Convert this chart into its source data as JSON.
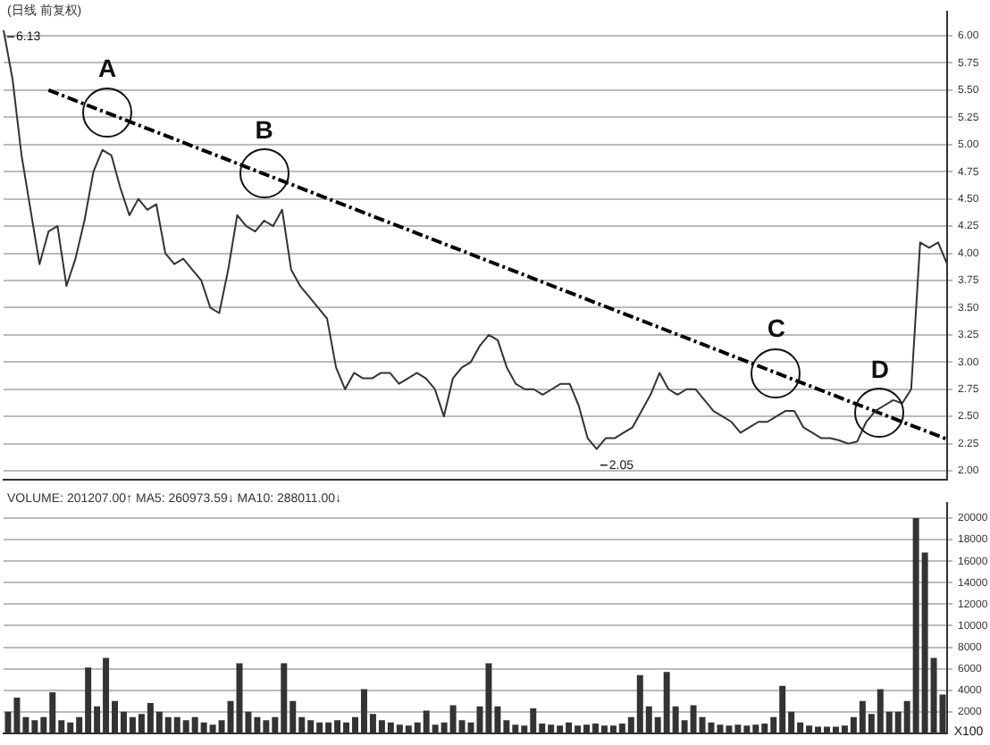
{
  "chart_data": [
    {
      "type": "line",
      "title": "(日线 前复权)",
      "categories": [
        null,
        null,
        null,
        null,
        null,
        null,
        null,
        null,
        null,
        null,
        null,
        null,
        null,
        null,
        null,
        null,
        null,
        null,
        null,
        null,
        null,
        null,
        null,
        null,
        null,
        null,
        null,
        null,
        null,
        null,
        null,
        null,
        null,
        null,
        null,
        null,
        null,
        null,
        null,
        null,
        null,
        null,
        null,
        null,
        null,
        null,
        null,
        null,
        null,
        null,
        null,
        null,
        null,
        null,
        null,
        null,
        null,
        null,
        null,
        null,
        null,
        null,
        null,
        null,
        null,
        null,
        null,
        null,
        null,
        null,
        null,
        null,
        null,
        null,
        null,
        null,
        null,
        null,
        null,
        null,
        null,
        null,
        null,
        null,
        null,
        null,
        null,
        null,
        null,
        null,
        null,
        null,
        null,
        null,
        null,
        null,
        null,
        null,
        null,
        null,
        null,
        null,
        null,
        null,
        null,
        null
      ],
      "series": [
        {
          "color": "#333333",
          "values": [
            6.05,
            5.6,
            4.9,
            4.4,
            3.9,
            4.2,
            4.25,
            3.7,
            3.95,
            4.3,
            4.75,
            4.95,
            4.9,
            4.6,
            4.35,
            4.5,
            4.4,
            4.45,
            4.0,
            3.9,
            3.95,
            3.85,
            3.75,
            3.5,
            3.45,
            3.85,
            4.35,
            4.25,
            4.2,
            4.3,
            4.25,
            4.4,
            3.85,
            3.7,
            3.6,
            3.5,
            3.4,
            2.95,
            2.75,
            2.9,
            2.85,
            2.85,
            2.9,
            2.9,
            2.8,
            2.85,
            2.9,
            2.85,
            2.75,
            2.5,
            2.85,
            2.95,
            3.0,
            3.15,
            3.25,
            3.2,
            2.95,
            2.8,
            2.75,
            2.75,
            2.7,
            2.75,
            2.8,
            2.8,
            2.6,
            2.3,
            2.2,
            2.3,
            2.3,
            2.35,
            2.4,
            2.55,
            2.7,
            2.9,
            2.75,
            2.7,
            2.75,
            2.75,
            2.65,
            2.55,
            2.5,
            2.45,
            2.35,
            2.4,
            2.45,
            2.45,
            2.5,
            2.55,
            2.55,
            2.4,
            2.35,
            2.3,
            2.3,
            2.28,
            2.25,
            2.27,
            2.45,
            2.55,
            2.6,
            2.65,
            2.62,
            2.75,
            4.1,
            4.05,
            4.1,
            3.9
          ]
        },
        {
          "type": "line",
          "color": "#000000",
          "line_style": "dashed",
          "values": [
            null,
            null,
            null,
            null,
            null,
            5.5,
            null,
            null,
            null,
            null,
            null,
            null,
            null,
            null,
            null,
            null,
            null,
            null,
            null,
            null,
            null,
            null,
            null,
            null,
            null,
            null,
            null,
            null,
            null,
            null,
            null,
            null,
            null,
            null,
            null,
            null,
            null,
            null,
            null,
            null,
            null,
            null,
            null,
            null,
            null,
            null,
            null,
            null,
            null,
            null,
            null,
            null,
            null,
            null,
            null,
            null,
            null,
            null,
            null,
            null,
            null,
            null,
            null,
            null,
            null,
            null,
            null,
            null,
            null,
            null,
            null,
            null,
            null,
            null,
            null,
            null,
            null,
            null,
            null,
            null,
            null,
            null,
            null,
            null,
            null,
            null,
            null,
            null,
            null,
            null,
            null,
            null,
            null,
            null,
            null,
            null,
            null,
            null,
            null,
            null,
            null,
            null,
            null,
            null,
            null,
            2.29
          ]
        }
      ],
      "ylim": [
        1.92,
        6.22
      ],
      "yticks": [
        {
          "value": 2,
          "label": "2.00"
        },
        {
          "value": 2.25,
          "label": "2.25"
        },
        {
          "value": 2.5,
          "label": "2.50"
        },
        {
          "value": 2.75,
          "label": "2.75"
        },
        {
          "value": 3,
          "label": "3.00"
        },
        {
          "value": 3.25,
          "label": "3.25"
        },
        {
          "value": 3.5,
          "label": "3.50"
        },
        {
          "value": 3.75,
          "label": "3.75"
        },
        {
          "value": 4,
          "label": "4.00"
        },
        {
          "value": 4.25,
          "label": "4.25"
        },
        {
          "value": 4.5,
          "label": "4.50"
        },
        {
          "value": 4.75,
          "label": "4.75"
        },
        {
          "value": 5,
          "label": "5.00"
        },
        {
          "value": 5.25,
          "label": "5.25"
        },
        {
          "value": 5.5,
          "label": "5.50"
        },
        {
          "value": 5.75,
          "label": "5.75"
        },
        {
          "value": 6,
          "label": "6.00"
        }
      ],
      "grid": "y",
      "legend": false,
      "tick_labels": "y",
      "marker": "none",
      "annotations": [
        "6.13",
        "2.05",
        {
          "text": "A",
          "y": 5.29
        },
        {
          "text": "B",
          "y": 4.73
        },
        {
          "text": "C",
          "y": 2.9
        },
        {
          "text": "D",
          "y": 2.53
        }
      ]
    },
    {
      "type": "bar",
      "title": "VOLUME: 201207.00↑  MA5: 260973.59↓  MA10: 288011.00↓",
      "categories": [
        null,
        null,
        null,
        null,
        null,
        null,
        null,
        null,
        null,
        null,
        null,
        null,
        null,
        null,
        null,
        null,
        null,
        null,
        null,
        null,
        null,
        null,
        null,
        null,
        null,
        null,
        null,
        null,
        null,
        null,
        null,
        null,
        null,
        null,
        null,
        null,
        null,
        null,
        null,
        null,
        null,
        null,
        null,
        null,
        null,
        null,
        null,
        null,
        null,
        null,
        null,
        null,
        null,
        null,
        null,
        null,
        null,
        null,
        null,
        null,
        null,
        null,
        null,
        null,
        null,
        null,
        null,
        null,
        null,
        null,
        null,
        null,
        null,
        null,
        null,
        null,
        null,
        null,
        null,
        null,
        null,
        null,
        null,
        null,
        null,
        null,
        null,
        null,
        null,
        null,
        null,
        null,
        null,
        null,
        null,
        null,
        null,
        null,
        null,
        null,
        null,
        null,
        null,
        null,
        null,
        null
      ],
      "series": [
        {
          "color": "#333333",
          "values": [
            2000,
            3300,
            1500,
            1200,
            1500,
            3800,
            1200,
            1000,
            1500,
            6100,
            2500,
            7000,
            3000,
            2000,
            1500,
            1800,
            2800,
            2000,
            1500,
            1500,
            1200,
            1500,
            1000,
            800,
            1200,
            3000,
            6500,
            2000,
            1500,
            1200,
            1500,
            6500,
            3000,
            1500,
            1200,
            1000,
            1000,
            1200,
            1000,
            1500,
            4100,
            1800,
            1200,
            1000,
            800,
            700,
            1000,
            2100,
            800,
            1000,
            2600,
            1200,
            1000,
            2500,
            6500,
            2500,
            1200,
            800,
            700,
            2300,
            900,
            800,
            700,
            1000,
            700,
            800,
            900,
            700,
            700,
            900,
            1500,
            5400,
            2500,
            1500,
            5700,
            2500,
            1200,
            2600,
            1500,
            1000,
            800,
            700,
            800,
            700,
            800,
            900,
            1500,
            4400,
            2000,
            1000,
            700,
            600,
            600,
            600,
            700,
            1500,
            3000,
            1800,
            4100,
            2000,
            2000,
            3000,
            20000,
            16800,
            7000,
            3600
          ]
        }
      ],
      "ylim": [
        0,
        21400
      ],
      "yticks": [
        2000,
        4000,
        6000,
        8000,
        10000,
        12000,
        14000,
        16000,
        18000,
        20000
      ],
      "grid": "y",
      "legend": false,
      "tick_labels": "y",
      "annotations": [
        "X100"
      ]
    }
  ]
}
